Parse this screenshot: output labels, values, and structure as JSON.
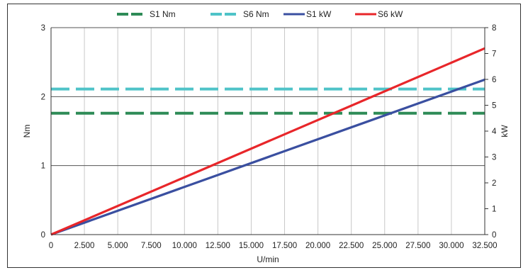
{
  "chart_data": {
    "type": "line",
    "xlabel": "U/min",
    "ylabel": "Nm",
    "y2label": "kW",
    "xlim": [
      0,
      32500
    ],
    "ylim": [
      0,
      3
    ],
    "y2lim": [
      0,
      8
    ],
    "x_ticks": [
      0,
      2500,
      5000,
      7500,
      10000,
      12500,
      15000,
      17500,
      20000,
      22500,
      25000,
      27500,
      30000,
      32500
    ],
    "x_tick_labels": [
      "0",
      "2.500",
      "5.000",
      "7.500",
      "10.000",
      "12.500",
      "15.000",
      "17.500",
      "20.000",
      "22.500",
      "25.000",
      "27.500",
      "30.000",
      "32.500"
    ],
    "y_ticks": [
      "0",
      "1",
      "2",
      "3"
    ],
    "y2_ticks": [
      "0",
      "1",
      "2",
      "3",
      "4",
      "5",
      "6",
      "7",
      "8"
    ],
    "grid": "vertical lines at x ticks, horizontal lines at left-axis ticks",
    "legend_position": "top",
    "series": [
      {
        "name": "S1 Nm",
        "axis": "left",
        "style": "dashed",
        "color": "#2e8b57",
        "x": [
          0,
          32500
        ],
        "values": [
          1.76,
          1.76
        ]
      },
      {
        "name": "S6 Nm",
        "axis": "left",
        "style": "dashed",
        "color": "#4fc3c8",
        "x": [
          0,
          32500
        ],
        "values": [
          2.11,
          2.11
        ]
      },
      {
        "name": "S1 kW",
        "axis": "right",
        "style": "solid",
        "color": "#3a4fa0",
        "x": [
          0,
          32500
        ],
        "values": [
          0,
          5.99
        ]
      },
      {
        "name": "S6 kW",
        "axis": "right",
        "style": "solid",
        "color": "#e8262a",
        "x": [
          0,
          32500
        ],
        "values": [
          0,
          7.2
        ]
      }
    ]
  }
}
